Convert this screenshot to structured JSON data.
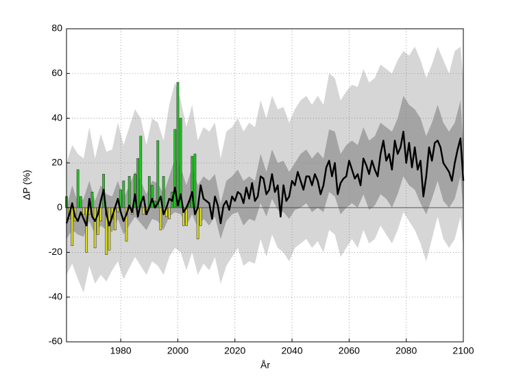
{
  "chart_data": {
    "type": "line",
    "xlabel": "År",
    "ylabel": "ΔP (%)",
    "xlim": [
      1961,
      2100
    ],
    "ylim": [
      -60,
      80
    ],
    "xticks": [
      1980,
      2000,
      2020,
      2040,
      2060,
      2080,
      2100
    ],
    "yticks": [
      -60,
      -40,
      -20,
      0,
      20,
      40,
      60,
      80
    ],
    "grid": true,
    "band_x": [
      1961,
      1963,
      1965,
      1967,
      1969,
      1971,
      1973,
      1975,
      1977,
      1979,
      1981,
      1983,
      1985,
      1987,
      1989,
      1991,
      1993,
      1995,
      1997,
      1999,
      2001,
      2003,
      2005,
      2007,
      2009,
      2011,
      2013,
      2015,
      2017,
      2019,
      2021,
      2023,
      2025,
      2027,
      2029,
      2031,
      2033,
      2035,
      2037,
      2039,
      2041,
      2043,
      2045,
      2047,
      2049,
      2051,
      2053,
      2055,
      2057,
      2059,
      2061,
      2063,
      2065,
      2067,
      2069,
      2071,
      2073,
      2075,
      2077,
      2079,
      2081,
      2083,
      2085,
      2087,
      2089,
      2091,
      2093,
      2095,
      2097,
      2099,
      2100
    ],
    "bands": [
      {
        "color": "#d6d6d6",
        "lower": [
          -30,
          -25,
          -32,
          -38,
          -26,
          -34,
          -30,
          -33,
          -28,
          -24,
          -32,
          -27,
          -22,
          -26,
          -30,
          -24,
          -26,
          -30,
          -22,
          -18,
          -20,
          -28,
          -20,
          -30,
          -25,
          -28,
          -22,
          -34,
          -26,
          -22,
          -18,
          -26,
          -24,
          -25,
          -14,
          -22,
          -12,
          -18,
          -20,
          -24,
          -18,
          -16,
          -14,
          -18,
          -15,
          -20,
          -10,
          -12,
          -22,
          -18,
          -14,
          -18,
          -10,
          -16,
          -14,
          -8,
          -12,
          -16,
          -10,
          -2,
          -6,
          -10,
          -16,
          -24,
          -14,
          -4,
          -14,
          -18,
          -14,
          -4,
          -18
        ],
        "upper": [
          20,
          28,
          24,
          22,
          36,
          22,
          33,
          25,
          26,
          38,
          28,
          36,
          44,
          40,
          28,
          40,
          38,
          30,
          46,
          56,
          48,
          36,
          46,
          30,
          36,
          34,
          38,
          22,
          34,
          36,
          40,
          34,
          38,
          36,
          48,
          40,
          50,
          44,
          45,
          38,
          44,
          48,
          50,
          46,
          50,
          46,
          60,
          58,
          48,
          52,
          55,
          54,
          62,
          56,
          58,
          64,
          62,
          60,
          66,
          70,
          68,
          72,
          66,
          58,
          64,
          72,
          66,
          60,
          70,
          72,
          58
        ]
      },
      {
        "color": "#a4a4a4",
        "lower": [
          -14,
          -10,
          -12,
          -13,
          -6,
          -12,
          -8,
          -10,
          -11,
          -5,
          -12,
          -8,
          -4,
          -7,
          -10,
          -5,
          -6,
          -10,
          -4,
          -2,
          -3,
          -8,
          -3,
          -9,
          -5,
          -8,
          -4,
          -14,
          -6,
          -3,
          -2,
          -8,
          -5,
          -6,
          2,
          -4,
          4,
          -1,
          -2,
          -5,
          -1,
          0,
          2,
          -2,
          0,
          -2,
          7,
          5,
          -3,
          0,
          2,
          0,
          6,
          -1,
          1,
          6,
          4,
          0,
          6,
          14,
          10,
          8,
          2,
          -3,
          4,
          12,
          3,
          0,
          4,
          14,
          -2
        ],
        "upper": [
          0,
          10,
          2,
          4,
          12,
          3,
          10,
          6,
          5,
          12,
          4,
          10,
          16,
          12,
          6,
          12,
          11,
          6,
          14,
          22,
          18,
          10,
          18,
          10,
          14,
          12,
          15,
          2,
          12,
          14,
          17,
          12,
          14,
          12,
          24,
          16,
          26,
          20,
          21,
          16,
          20,
          24,
          26,
          22,
          25,
          22,
          35,
          34,
          24,
          28,
          30,
          28,
          36,
          30,
          32,
          38,
          36,
          34,
          40,
          50,
          46,
          44,
          40,
          32,
          38,
          46,
          38,
          34,
          38,
          48,
          28
        ]
      }
    ],
    "bars": {
      "pos_color": "#22c822",
      "neg_color": "#dcdc22",
      "x": [
        1961,
        1962,
        1963,
        1964,
        1965,
        1966,
        1967,
        1968,
        1969,
        1970,
        1971,
        1972,
        1973,
        1974,
        1975,
        1976,
        1977,
        1978,
        1979,
        1980,
        1981,
        1982,
        1983,
        1984,
        1985,
        1986,
        1987,
        1988,
        1989,
        1990,
        1991,
        1992,
        1993,
        1994,
        1995,
        1996,
        1997,
        1998,
        1999,
        2000,
        2001,
        2002,
        2003,
        2004,
        2005,
        2006,
        2007,
        2008
      ],
      "values": [
        5,
        -5,
        -17,
        -6,
        17,
        5,
        -3,
        -20,
        -3,
        7,
        -18,
        -12,
        -6,
        15,
        -21,
        -19,
        -5,
        -10,
        -2,
        8,
        12,
        -15,
        14,
        -3,
        15,
        22,
        32,
        -3,
        -3,
        14,
        10,
        3,
        30,
        -10,
        14,
        -4,
        -5,
        7,
        35,
        56,
        40,
        -8,
        -8,
        3,
        23,
        24,
        -14,
        -8
      ]
    },
    "line": {
      "color": "#000000",
      "x": [
        1961,
        1962,
        1963,
        1964,
        1965,
        1966,
        1967,
        1968,
        1969,
        1970,
        1971,
        1972,
        1973,
        1974,
        1975,
        1976,
        1977,
        1978,
        1979,
        1980,
        1981,
        1982,
        1983,
        1984,
        1985,
        1986,
        1987,
        1988,
        1989,
        1990,
        1991,
        1992,
        1993,
        1994,
        1995,
        1996,
        1997,
        1998,
        1999,
        2000,
        2001,
        2002,
        2003,
        2004,
        2005,
        2006,
        2007,
        2008,
        2009,
        2010,
        2011,
        2012,
        2013,
        2014,
        2015,
        2016,
        2017,
        2018,
        2019,
        2020,
        2021,
        2022,
        2023,
        2024,
        2025,
        2026,
        2027,
        2028,
        2029,
        2030,
        2031,
        2032,
        2033,
        2034,
        2035,
        2036,
        2037,
        2038,
        2039,
        2040,
        2041,
        2042,
        2043,
        2044,
        2045,
        2046,
        2047,
        2048,
        2049,
        2050,
        2051,
        2052,
        2053,
        2054,
        2055,
        2056,
        2057,
        2058,
        2059,
        2060,
        2061,
        2062,
        2063,
        2064,
        2065,
        2066,
        2067,
        2068,
        2069,
        2070,
        2071,
        2072,
        2073,
        2074,
        2075,
        2076,
        2077,
        2078,
        2079,
        2080,
        2081,
        2082,
        2083,
        2084,
        2085,
        2086,
        2087,
        2088,
        2089,
        2090,
        2091,
        2092,
        2093,
        2094,
        2095,
        2096,
        2097,
        2098,
        2099,
        2100
      ],
      "values": [
        -7,
        -3,
        2,
        -4,
        -6,
        -2,
        -5,
        -8,
        4,
        -4,
        -6,
        -3,
        3,
        8,
        -3,
        -8,
        -4,
        0,
        4,
        -2,
        -6,
        -3,
        1,
        -2,
        6,
        -4,
        2,
        5,
        -3,
        0,
        4,
        0,
        2,
        5,
        -3,
        0,
        4,
        3,
        9,
        1,
        6,
        -2,
        0,
        3,
        7,
        -3,
        0,
        10,
        4,
        3,
        2,
        -5,
        5,
        1,
        -7,
        1,
        3,
        -1,
        5,
        3,
        7,
        6,
        2,
        9,
        4,
        11,
        3,
        5,
        14,
        13,
        6,
        8,
        15,
        7,
        10,
        -4,
        10,
        3,
        5,
        12,
        10,
        16,
        12,
        8,
        14,
        14,
        10,
        15,
        12,
        6,
        10,
        18,
        21,
        14,
        20,
        6,
        11,
        13,
        14,
        21,
        17,
        13,
        15,
        10,
        22,
        19,
        15,
        21,
        17,
        14,
        24,
        30,
        21,
        24,
        17,
        30,
        24,
        27,
        34,
        20,
        29,
        18,
        27,
        17,
        21,
        5,
        14,
        27,
        21,
        29,
        30,
        27,
        20,
        18,
        16,
        12,
        20,
        26,
        31,
        12
      ]
    }
  }
}
